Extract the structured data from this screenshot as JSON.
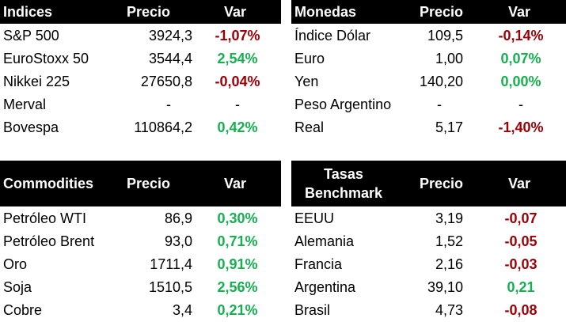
{
  "colors": {
    "header_bg": "#000000",
    "header_text": "#ffffff",
    "negative": "#9c0006",
    "positive": "#16b050"
  },
  "indices": {
    "headers": [
      "Indices",
      "Precio",
      "Var"
    ],
    "rows": [
      {
        "name": "S&P 500",
        "precio": "3924,3",
        "var": "-1,07%",
        "trend": "neg"
      },
      {
        "name": "EuroStoxx 50",
        "precio": "3544,4",
        "var": "2,54%",
        "trend": "pos"
      },
      {
        "name": "Nikkei 225",
        "precio": "27650,8",
        "var": "-0,04%",
        "trend": "neg"
      },
      {
        "name": "Merval",
        "precio": "-",
        "var": "-",
        "trend": "neu"
      },
      {
        "name": "Bovespa",
        "precio": "110864,2",
        "var": "0,42%",
        "trend": "pos"
      }
    ]
  },
  "monedas": {
    "headers": [
      "Monedas",
      "Precio",
      "Var"
    ],
    "rows": [
      {
        "name": "Índice Dólar",
        "precio": "109,5",
        "var": "-0,14%",
        "trend": "neg"
      },
      {
        "name": "Euro",
        "precio": "1,00",
        "var": "0,07%",
        "trend": "pos"
      },
      {
        "name": "Yen",
        "precio": "140,20",
        "var": "0,00%",
        "trend": "pos"
      },
      {
        "name": "Peso Argentino",
        "precio": "-",
        "var": "-",
        "trend": "neu"
      },
      {
        "name": "Real",
        "precio": "5,17",
        "var": "-1,40%",
        "trend": "neg"
      }
    ]
  },
  "commodities": {
    "headers": [
      "Commodities",
      "Precio",
      "Var"
    ],
    "rows": [
      {
        "name": "Petróleo WTI",
        "precio": "86,9",
        "var": "0,30%",
        "trend": "pos"
      },
      {
        "name": "Petróleo Brent",
        "precio": "93,0",
        "var": "0,71%",
        "trend": "pos"
      },
      {
        "name": "Oro",
        "precio": "1711,4",
        "var": "0,91%",
        "trend": "pos"
      },
      {
        "name": "Soja",
        "precio": "1510,5",
        "var": "2,56%",
        "trend": "pos"
      },
      {
        "name": "Cobre",
        "precio": "3,4",
        "var": "0,21%",
        "trend": "pos"
      }
    ]
  },
  "tasas": {
    "headers": [
      "Tasas",
      "Benchmark",
      "Precio",
      "Var"
    ],
    "rows": [
      {
        "name": "EEUU",
        "precio": "3,19",
        "var": "-0,07",
        "trend": "neg"
      },
      {
        "name": "Alemania",
        "precio": "1,52",
        "var": "-0,05",
        "trend": "neg"
      },
      {
        "name": "Francia",
        "precio": "2,16",
        "var": "-0,03",
        "trend": "neg"
      },
      {
        "name": "Argentina",
        "precio": "39,10",
        "var": "0,21",
        "trend": "pos"
      },
      {
        "name": "Brasil",
        "precio": "4,73",
        "var": "-0,08",
        "trend": "neg"
      }
    ]
  }
}
